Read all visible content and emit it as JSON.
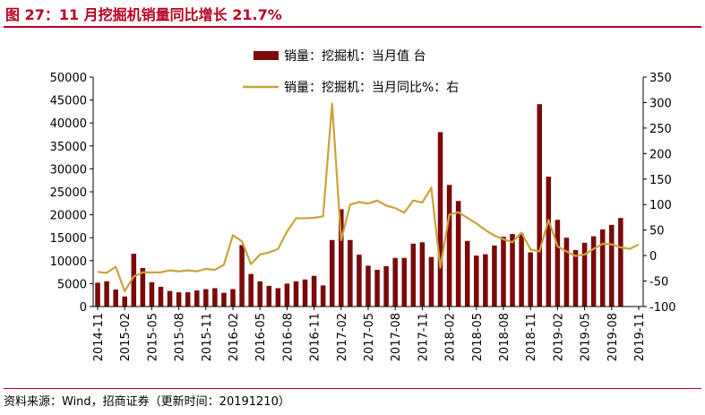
{
  "figure": {
    "title": "图 27：11 月挖掘机销量同比增长 21.7%",
    "source": "资料来源：Wind，招商证券（更新时间：20191210）"
  },
  "chart_data": {
    "type": "bar+line",
    "legend_position": "top",
    "grid": false,
    "x_tick_labels": [
      "2014-11",
      "2015-02",
      "2015-05",
      "2015-08",
      "2015-11",
      "2016-02",
      "2016-05",
      "2016-08",
      "2016-11",
      "2017-02",
      "2017-05",
      "2017-08",
      "2017-11",
      "2018-02",
      "2018-05",
      "2018-08",
      "2018-11",
      "2019-02",
      "2019-05",
      "2019-08",
      "2019-11"
    ],
    "categories": [
      "2014-11",
      "2014-12",
      "2015-01",
      "2015-02",
      "2015-03",
      "2015-04",
      "2015-05",
      "2015-06",
      "2015-07",
      "2015-08",
      "2015-09",
      "2015-10",
      "2015-11",
      "2015-12",
      "2016-01",
      "2016-02",
      "2016-03",
      "2016-04",
      "2016-05",
      "2016-06",
      "2016-07",
      "2016-08",
      "2016-09",
      "2016-10",
      "2016-11",
      "2016-12",
      "2017-01",
      "2017-02",
      "2017-03",
      "2017-04",
      "2017-05",
      "2017-06",
      "2017-07",
      "2017-08",
      "2017-09",
      "2017-10",
      "2017-11",
      "2017-12",
      "2018-01",
      "2018-02",
      "2018-03",
      "2018-04",
      "2018-05",
      "2018-06",
      "2018-07",
      "2018-08",
      "2018-09",
      "2018-10",
      "2018-11",
      "2018-12",
      "2019-01",
      "2019-02",
      "2019-03",
      "2019-04",
      "2019-05",
      "2019-06",
      "2019-07",
      "2019-08",
      "2019-09",
      "2019-10",
      "2019-11"
    ],
    "series": [
      {
        "name": "销量：挖掘机：当月值 台",
        "type": "bar",
        "axis": "left",
        "color": "#7b0a0a",
        "values": [
          5200,
          5500,
          3700,
          2200,
          11500,
          8400,
          5300,
          4300,
          3400,
          3100,
          3100,
          3500,
          3800,
          4000,
          3000,
          3800,
          13400,
          7100,
          5500,
          4500,
          4000,
          5000,
          5500,
          5900,
          6700,
          4600,
          14500,
          21200,
          14500,
          11300,
          8900,
          8000,
          8800,
          10600,
          10600,
          13700,
          14000,
          10800,
          38000,
          26500,
          23000,
          14300,
          11100,
          11400,
          13300,
          15200,
          15800,
          15900,
          11800,
          44100,
          28300,
          18900,
          15000,
          12300,
          13900,
          15300,
          16800,
          17800,
          19300,
          0,
          0
        ]
      },
      {
        "name": "销量：挖掘机：当月同比%：右",
        "type": "line",
        "axis": "right",
        "color": "#c9a43a",
        "values": [
          -32,
          -34,
          -22,
          -70,
          -41,
          -33,
          -33,
          -33,
          -29,
          -31,
          -29,
          -31,
          -26,
          -28,
          -18,
          40,
          28,
          -17,
          2,
          6,
          13,
          47,
          73,
          73,
          74,
          77,
          298,
          30,
          100,
          105,
          102,
          108,
          98,
          93,
          84,
          108,
          104,
          133,
          -24,
          80,
          85,
          74,
          63,
          50,
          39,
          32,
          26,
          45,
          12,
          8,
          70,
          18,
          8,
          -1,
          2,
          13,
          23,
          22,
          16,
          13,
          21.7
        ]
      }
    ],
    "y_left": {
      "ylim": [
        0,
        50000
      ],
      "ticks": [
        "0",
        "5000",
        "10000",
        "15000",
        "20000",
        "25000",
        "30000",
        "35000",
        "40000",
        "45000",
        "50000"
      ]
    },
    "y_right": {
      "ylim": [
        -100,
        350
      ],
      "ticks": [
        "-100",
        "-50",
        "0",
        "50",
        "100",
        "150",
        "200",
        "250",
        "300",
        "350"
      ]
    }
  }
}
